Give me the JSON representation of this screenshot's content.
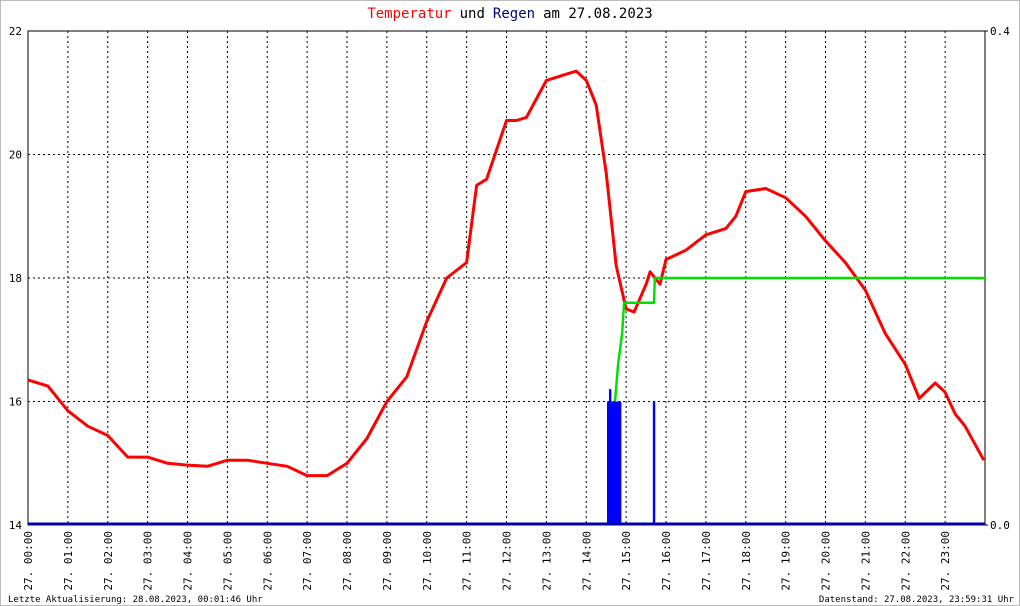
{
  "chart_data": {
    "type": "line",
    "title_parts": [
      {
        "text": "Temperatur",
        "color": "#ff0000"
      },
      {
        "text": "und",
        "color": "#000000"
      },
      {
        "text": "Regen",
        "color": "#000080"
      },
      {
        "text": "am 27.08.2023",
        "color": "#000000"
      }
    ],
    "footer_left": "Letzte Aktualisierung: 28.08.2023, 00:01:46 Uhr",
    "footer_right": "Datenstand: 27.08.2023, 23:59:31 Uhr",
    "xlim": [
      0,
      24
    ],
    "xticks": [
      {
        "value": 0,
        "label": "27. 00:00"
      },
      {
        "value": 1,
        "label": "27. 01:00"
      },
      {
        "value": 2,
        "label": "27. 02:00"
      },
      {
        "value": 3,
        "label": "27. 03:00"
      },
      {
        "value": 4,
        "label": "27. 04:00"
      },
      {
        "value": 5,
        "label": "27. 05:00"
      },
      {
        "value": 6,
        "label": "27. 06:00"
      },
      {
        "value": 7,
        "label": "27. 07:00"
      },
      {
        "value": 8,
        "label": "27. 08:00"
      },
      {
        "value": 9,
        "label": "27. 09:00"
      },
      {
        "value": 10,
        "label": "27. 10:00"
      },
      {
        "value": 11,
        "label": "27. 11:00"
      },
      {
        "value": 12,
        "label": "27. 12:00"
      },
      {
        "value": 13,
        "label": "27. 13:00"
      },
      {
        "value": 14,
        "label": "27. 14:00"
      },
      {
        "value": 15,
        "label": "27. 15:00"
      },
      {
        "value": 16,
        "label": "27. 16:00"
      },
      {
        "value": 17,
        "label": "27. 17:00"
      },
      {
        "value": 18,
        "label": "27. 18:00"
      },
      {
        "value": 19,
        "label": "27. 19:00"
      },
      {
        "value": 20,
        "label": "27. 20:00"
      },
      {
        "value": 21,
        "label": "27. 21:00"
      },
      {
        "value": 22,
        "label": "27. 22:00"
      },
      {
        "value": 23,
        "label": "27. 23:00"
      }
    ],
    "ylim": [
      14,
      22
    ],
    "yticks": [
      14,
      16,
      18,
      20,
      22
    ],
    "y2lim": [
      0,
      0.4
    ],
    "y2ticks": [
      {
        "value": 0,
        "label": "0.0"
      },
      {
        "value": 0.4,
        "label": "0.4"
      }
    ],
    "grid": true,
    "series": [
      {
        "color": "#ff0000",
        "kind": "line",
        "x": [
          0,
          0.5,
          1,
          1.5,
          2,
          2.5,
          3,
          3.5,
          4,
          4.5,
          5,
          5.5,
          6,
          6.5,
          7,
          7.5,
          8,
          8.5,
          9,
          9.5,
          10,
          10.5,
          11,
          11.25,
          11.5,
          12,
          12.25,
          12.5,
          13,
          13.5,
          13.75,
          14,
          14.25,
          14.5,
          14.75,
          15,
          15.2,
          15.5,
          15.6,
          15.85,
          16,
          16.5,
          17,
          17.5,
          17.75,
          18,
          18.5,
          19,
          19.5,
          20,
          20.5,
          21,
          21.5,
          22,
          22.35,
          22.75,
          23,
          23.25,
          23.5,
          23.97
        ],
        "values": [
          16.35,
          16.25,
          15.85,
          15.6,
          15.45,
          15.1,
          15.1,
          15.0,
          14.97,
          14.95,
          15.05,
          15.05,
          15.0,
          14.95,
          14.8,
          14.8,
          15.0,
          15.4,
          16.0,
          16.4,
          17.3,
          18.0,
          18.25,
          19.5,
          19.6,
          20.55,
          20.55,
          20.6,
          21.2,
          21.3,
          21.35,
          21.2,
          20.8,
          19.7,
          18.2,
          17.5,
          17.45,
          17.9,
          18.1,
          17.9,
          18.3,
          18.45,
          18.7,
          18.8,
          19.0,
          19.4,
          19.45,
          19.3,
          19.0,
          18.6,
          18.25,
          17.8,
          17.1,
          16.6,
          16.05,
          16.3,
          16.15,
          15.8,
          15.6,
          15.05
        ]
      },
      {
        "color": "#00e000",
        "kind": "step",
        "axis": "y2",
        "x": [
          14.72,
          14.8,
          14.9,
          14.95,
          15.7,
          15.72,
          24
        ],
        "values": [
          0.1,
          0.13,
          0.155,
          0.18,
          0.18,
          0.2,
          0.2
        ]
      },
      {
        "color": "#0000ff",
        "kind": "bar",
        "axis": "y2",
        "x": [
          14.55,
          14.6,
          14.65,
          14.7,
          14.75,
          14.8,
          14.85,
          15.7
        ],
        "values": [
          0.1,
          0.11,
          0.1,
          0.1,
          0.1,
          0.1,
          0.1,
          0.1
        ]
      }
    ]
  }
}
